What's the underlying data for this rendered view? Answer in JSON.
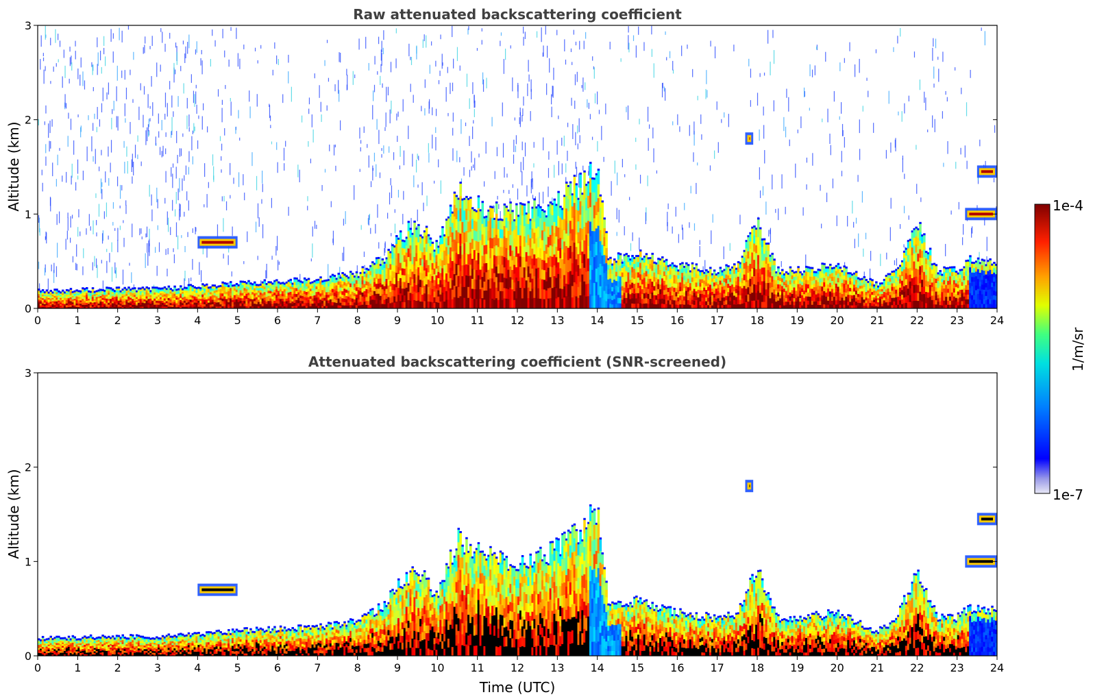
{
  "chart_data": [
    {
      "type": "heatmap",
      "title": "Raw attenuated backscattering coefficient",
      "xlabel": "",
      "ylabel": "Altitude (km)",
      "xlim": [
        0,
        24
      ],
      "ylim": [
        0,
        3
      ],
      "xticks": [
        0,
        1,
        2,
        3,
        4,
        5,
        6,
        7,
        8,
        9,
        10,
        11,
        12,
        13,
        14,
        15,
        16,
        17,
        18,
        19,
        20,
        21,
        22,
        23,
        24
      ],
      "yticks": [
        0,
        1,
        2,
        3
      ],
      "color_scale": "jet",
      "screened": false,
      "boundary_layer_top_km": [
        [
          0,
          0.18
        ],
        [
          1,
          0.19
        ],
        [
          2,
          0.2
        ],
        [
          3,
          0.2
        ],
        [
          4,
          0.23
        ],
        [
          5,
          0.26
        ],
        [
          6,
          0.28
        ],
        [
          7,
          0.3
        ],
        [
          8,
          0.36
        ],
        [
          8.7,
          0.55
        ],
        [
          9,
          0.75
        ],
        [
          9.5,
          0.9
        ],
        [
          10,
          0.65
        ],
        [
          10.5,
          1.25
        ],
        [
          11,
          1.1
        ],
        [
          12,
          1.0
        ],
        [
          12.8,
          1.1
        ],
        [
          13.5,
          1.3
        ],
        [
          14,
          1.55
        ],
        [
          14.3,
          0.5
        ],
        [
          15,
          0.6
        ],
        [
          16,
          0.45
        ],
        [
          17,
          0.4
        ],
        [
          17.5,
          0.45
        ],
        [
          18,
          0.9
        ],
        [
          18.5,
          0.4
        ],
        [
          19,
          0.4
        ],
        [
          20,
          0.45
        ],
        [
          21,
          0.25
        ],
        [
          21.5,
          0.4
        ],
        [
          22,
          0.9
        ],
        [
          22.5,
          0.4
        ],
        [
          23,
          0.4
        ],
        [
          23.3,
          0.5
        ],
        [
          24,
          0.5
        ]
      ],
      "cloud_layers": [
        {
          "x": [
            4.0,
            5.0
          ],
          "y_km": 0.7
        },
        {
          "x": [
            17.7,
            17.9
          ],
          "y_km": 1.8
        },
        {
          "x": [
            23.2,
            24.0
          ],
          "y_km": 1.0
        },
        {
          "x": [
            23.5,
            24.0
          ],
          "y_km": 1.45
        }
      ]
    },
    {
      "type": "heatmap",
      "title": "Attenuated backscattering coefficient (SNR-screened)",
      "xlabel": "Time (UTC)",
      "ylabel": "Altitude (km)",
      "xlim": [
        0,
        24
      ],
      "ylim": [
        0,
        3
      ],
      "xticks": [
        0,
        1,
        2,
        3,
        4,
        5,
        6,
        7,
        8,
        9,
        10,
        11,
        12,
        13,
        14,
        15,
        16,
        17,
        18,
        19,
        20,
        21,
        22,
        23,
        24
      ],
      "yticks": [
        0,
        1,
        2,
        3
      ],
      "color_scale": "jet",
      "screened": true,
      "boundary_layer_top_km": [
        [
          0,
          0.18
        ],
        [
          1,
          0.19
        ],
        [
          2,
          0.2
        ],
        [
          3,
          0.2
        ],
        [
          4,
          0.23
        ],
        [
          5,
          0.26
        ],
        [
          6,
          0.28
        ],
        [
          7,
          0.3
        ],
        [
          8,
          0.36
        ],
        [
          8.7,
          0.55
        ],
        [
          9,
          0.75
        ],
        [
          9.5,
          0.9
        ],
        [
          10,
          0.65
        ],
        [
          10.5,
          1.25
        ],
        [
          11,
          1.1
        ],
        [
          12,
          1.0
        ],
        [
          12.8,
          1.1
        ],
        [
          13.5,
          1.3
        ],
        [
          14,
          1.55
        ],
        [
          14.3,
          0.5
        ],
        [
          15,
          0.6
        ],
        [
          16,
          0.45
        ],
        [
          17,
          0.4
        ],
        [
          17.5,
          0.45
        ],
        [
          18,
          0.9
        ],
        [
          18.5,
          0.4
        ],
        [
          19,
          0.4
        ],
        [
          20,
          0.45
        ],
        [
          21,
          0.25
        ],
        [
          21.5,
          0.4
        ],
        [
          22,
          0.9
        ],
        [
          22.5,
          0.4
        ],
        [
          23,
          0.4
        ],
        [
          23.3,
          0.5
        ],
        [
          24,
          0.5
        ]
      ],
      "cloud_layers": [
        {
          "x": [
            4.0,
            5.0
          ],
          "y_km": 0.7
        },
        {
          "x": [
            17.7,
            17.9
          ],
          "y_km": 1.8
        },
        {
          "x": [
            23.2,
            24.0
          ],
          "y_km": 1.0
        },
        {
          "x": [
            23.5,
            24.0
          ],
          "y_km": 1.45
        }
      ]
    }
  ],
  "colorbar": {
    "label": "1/m/sr",
    "max_label": "1e-4",
    "min_label": "1e-7",
    "colormap": "jet"
  },
  "colors": {
    "axis": "#000000",
    "title": "#404040",
    "background": "#ffffff"
  }
}
